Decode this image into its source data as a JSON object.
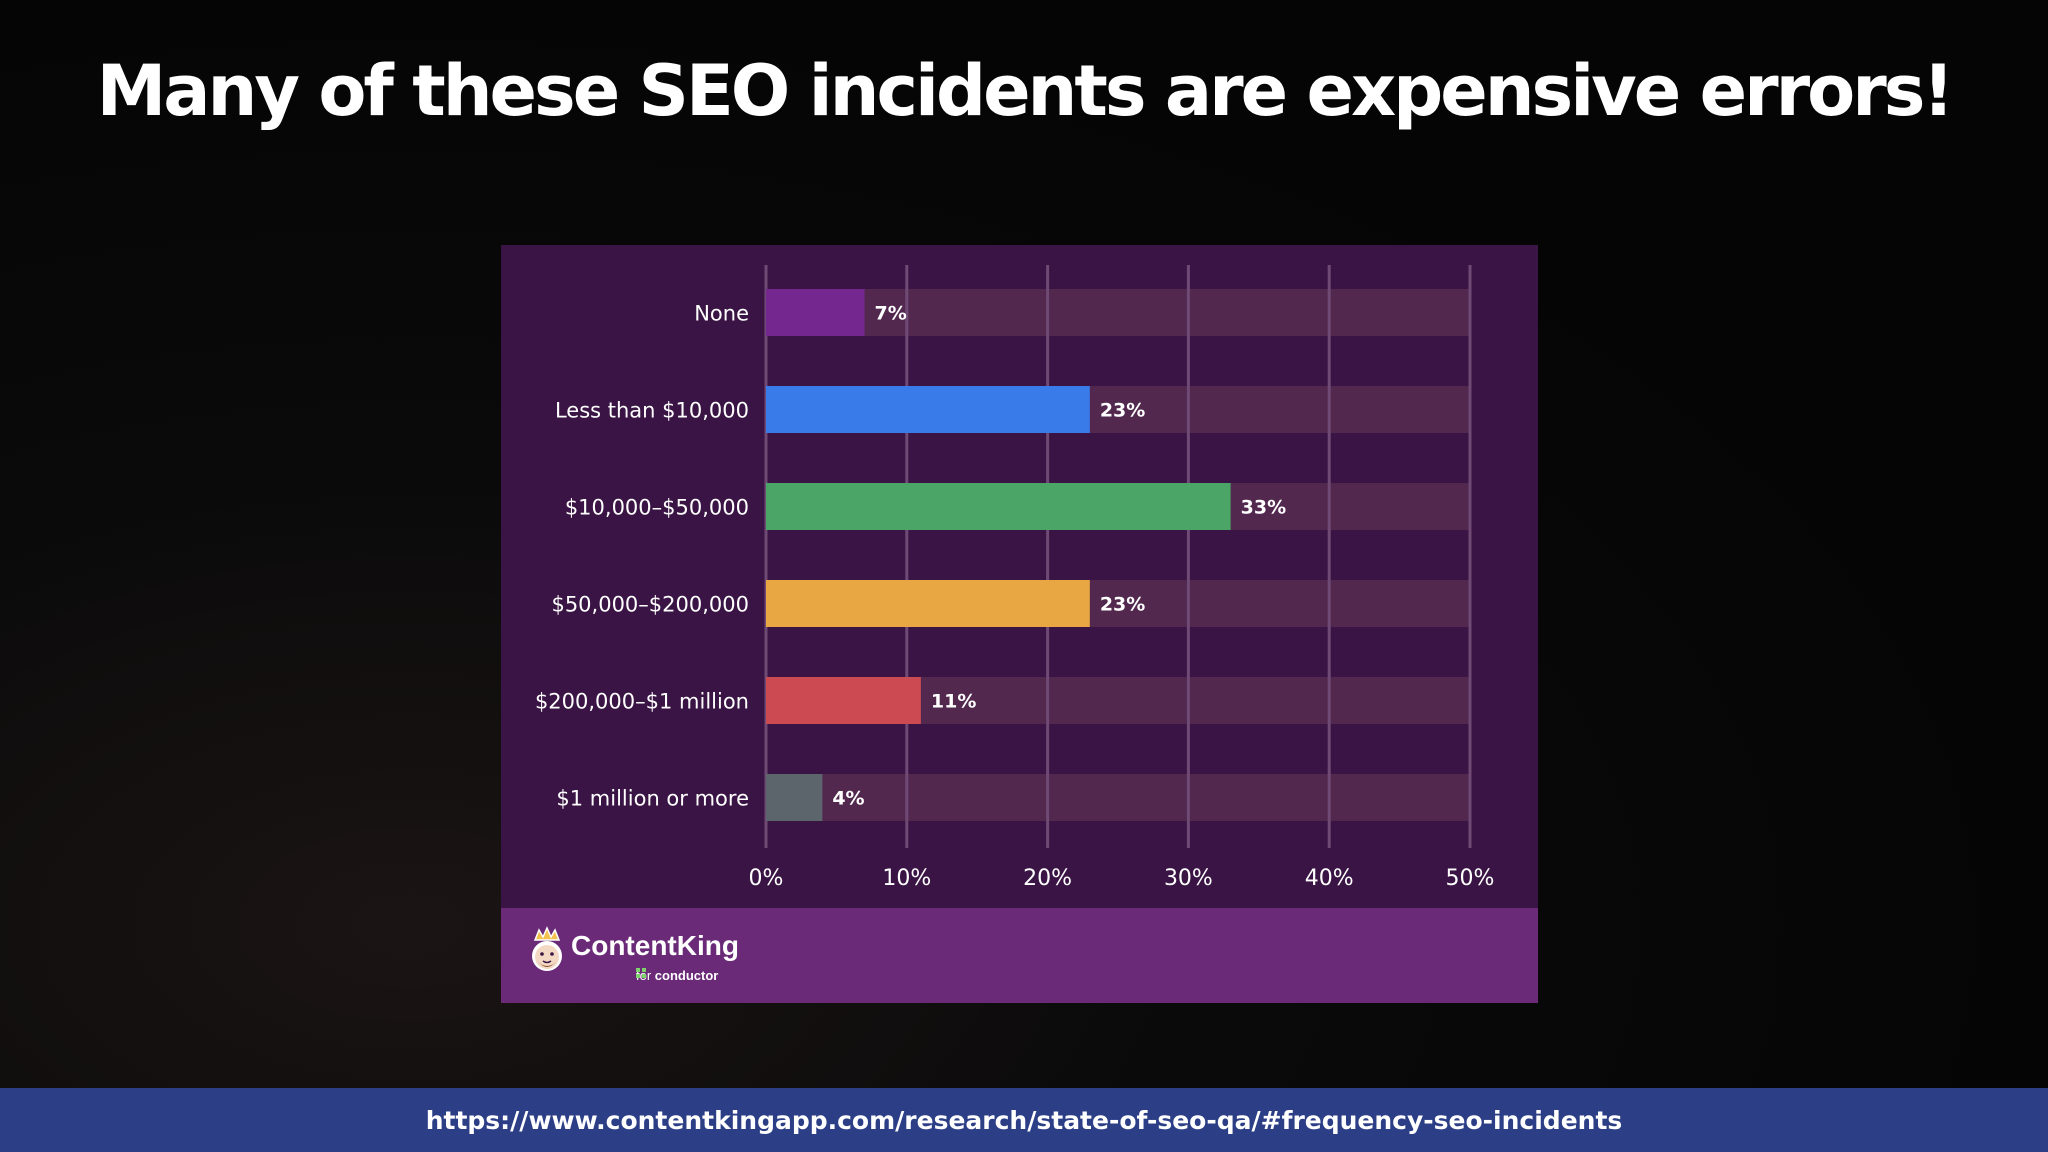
{
  "slide": {
    "title": "Many of these SEO incidents are expensive errors!",
    "source_url": "https://www.contentkingapp.com/research/state-of-seo-qa/#frequency-seo-incidents"
  },
  "logo": {
    "name": "ContentKing",
    "sub_prefix": "for",
    "sub_brand": "conductor",
    "icon": "king-face-icon"
  },
  "colors": {
    "card_background": "#3a1444",
    "footer_background": "#6a2a78",
    "track": "#52284f",
    "gridline": "#6e4a74",
    "source_bar": "#2c3e86"
  },
  "chart_data": {
    "type": "bar",
    "orientation": "horizontal",
    "categories": [
      "None",
      "Less than $10,000",
      "$10,000–$50,000",
      "$50,000–$200,000",
      "$200,000–$1 million",
      "$1 million or more"
    ],
    "values": [
      7,
      23,
      33,
      23,
      11,
      4
    ],
    "value_labels": [
      "7%",
      "23%",
      "33%",
      "23%",
      "11%",
      "4%"
    ],
    "bar_colors": [
      "#74278e",
      "#3a7bea",
      "#4aa566",
      "#e8a742",
      "#cc4b52",
      "#5d656c"
    ],
    "xlim": [
      0,
      50
    ],
    "xticks": [
      0,
      10,
      20,
      30,
      40,
      50
    ],
    "xtick_labels": [
      "0%",
      "10%",
      "20%",
      "30%",
      "40%",
      "50%"
    ],
    "grid": true,
    "legend": "none"
  }
}
